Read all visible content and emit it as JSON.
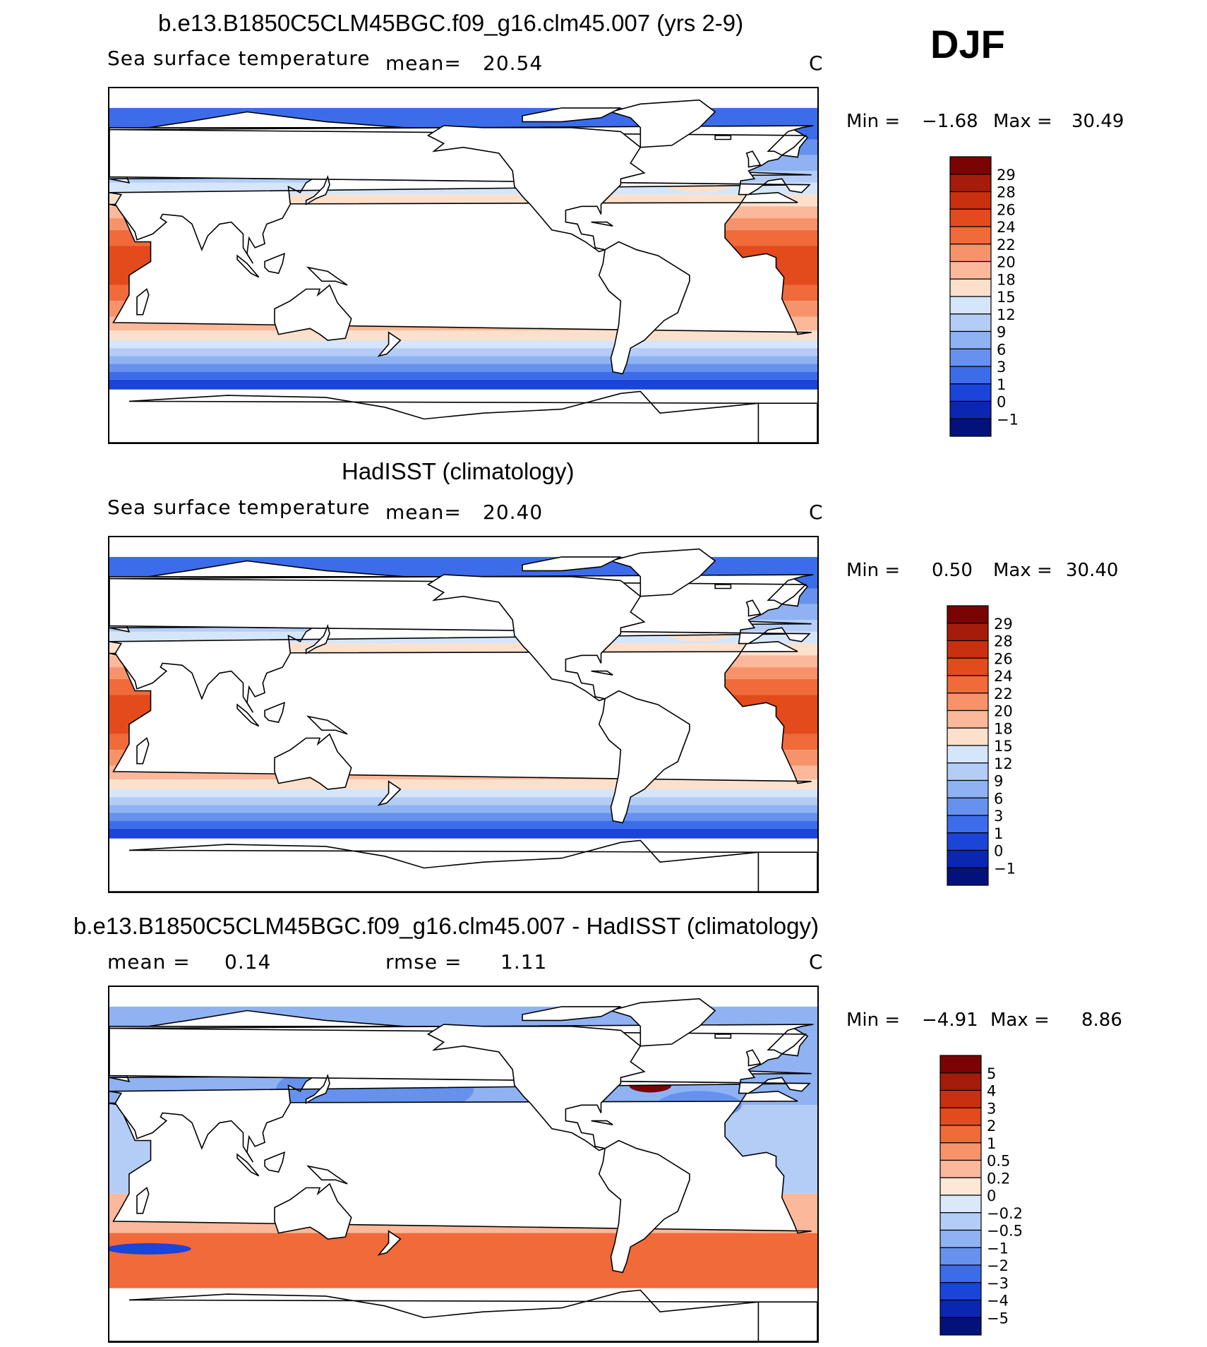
{
  "header": {
    "season": "DJF"
  },
  "panels": [
    {
      "id": "model",
      "title": "b.e13.B1850C5CLM45BGC.f09_g16.clm45.007 (yrs 2-9)",
      "variable": "Sea surface temperature",
      "mean_label": "mean=",
      "mean_value": "20.54",
      "units": "C",
      "min_label": "Min =",
      "min_value": "−1.68",
      "max_label": "Max =",
      "max_value": "30.49",
      "colorbar": {
        "levels": [
          "29",
          "28",
          "26",
          "24",
          "22",
          "20",
          "18",
          "15",
          "12",
          "9",
          "6",
          "3",
          "1",
          "0",
          "−1"
        ],
        "colors": [
          "#7a0403",
          "#a51c0a",
          "#c8300f",
          "#e34a1c",
          "#f06a3a",
          "#f7936b",
          "#fbb89a",
          "#fde0cc",
          "#d6e6fa",
          "#b3cdf6",
          "#8fb2f2",
          "#6692ee",
          "#3c6cea",
          "#1b44d8",
          "#0b26b0",
          "#03117a"
        ]
      }
    },
    {
      "id": "obs",
      "title": "HadISST (climatology)",
      "variable": "Sea surface temperature",
      "mean_label": "mean=",
      "mean_value": "20.40",
      "units": "C",
      "min_label": "Min =",
      "min_value": "0.50",
      "max_label": "Max =",
      "max_value": "30.40",
      "colorbar": {
        "levels": [
          "29",
          "28",
          "26",
          "24",
          "22",
          "20",
          "18",
          "15",
          "12",
          "9",
          "6",
          "3",
          "1",
          "0",
          "−1"
        ],
        "colors": [
          "#7a0403",
          "#a51c0a",
          "#c8300f",
          "#e34a1c",
          "#f06a3a",
          "#f7936b",
          "#fbb89a",
          "#fde0cc",
          "#d6e6fa",
          "#b3cdf6",
          "#8fb2f2",
          "#6692ee",
          "#3c6cea",
          "#1b44d8",
          "#0b26b0",
          "#03117a"
        ]
      }
    },
    {
      "id": "diff",
      "title": "b.e13.B1850C5CLM45BGC.f09_g16.clm45.007 - HadISST (climatology)",
      "mean_label": "mean =",
      "mean_value": "0.14",
      "rmse_label": "rmse =",
      "rmse_value": "1.11",
      "units": "C",
      "min_label": "Min =",
      "min_value": "−4.91",
      "max_label": "Max =",
      "max_value": "8.86",
      "colorbar": {
        "levels": [
          "5",
          "4",
          "3",
          "2",
          "1",
          "0.5",
          "0.2",
          "0",
          "−0.2",
          "−0.5",
          "−1",
          "−2",
          "−3",
          "−4",
          "−5"
        ],
        "colors": [
          "#7a0403",
          "#a51c0a",
          "#c8300f",
          "#e34a1c",
          "#f06a3a",
          "#f7936b",
          "#fbb89a",
          "#fde8d8",
          "#dbe8fa",
          "#b3cdf6",
          "#8fb2f2",
          "#6692ee",
          "#3c6cea",
          "#1b44d8",
          "#0b26b0",
          "#03117a"
        ]
      }
    }
  ]
}
